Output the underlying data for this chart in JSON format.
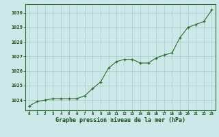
{
  "x": [
    0,
    1,
    2,
    3,
    4,
    5,
    6,
    7,
    8,
    9,
    10,
    11,
    12,
    13,
    14,
    15,
    16,
    17,
    18,
    19,
    20,
    21,
    22,
    23
  ],
  "y": [
    1023.6,
    1023.9,
    1024.0,
    1024.1,
    1024.1,
    1024.1,
    1024.1,
    1024.3,
    1024.8,
    1025.25,
    1026.2,
    1026.65,
    1026.8,
    1026.8,
    1026.55,
    1026.55,
    1026.9,
    1027.1,
    1027.25,
    1028.3,
    1029.0,
    1029.2,
    1029.4,
    1030.2
  ],
  "line_color": "#2d6a2d",
  "marker_color": "#2d6a2d",
  "bg_color": "#cce8e8",
  "grid_color": "#aacaca",
  "title": "Graphe pression niveau de la mer (hPa)",
  "ylabel_ticks": [
    1024,
    1025,
    1026,
    1027,
    1028,
    1029,
    1030
  ],
  "xlabel_ticks": [
    0,
    1,
    2,
    3,
    4,
    5,
    6,
    7,
    8,
    9,
    10,
    11,
    12,
    13,
    14,
    15,
    16,
    17,
    18,
    19,
    20,
    21,
    22,
    23
  ],
  "ylim": [
    1023.3,
    1030.6
  ],
  "xlim": [
    -0.5,
    23.5
  ],
  "outer_bg": "#cce8e8",
  "title_color": "#1a4a1a",
  "tick_color": "#1a4a1a",
  "axis_color": "#2d6a2d"
}
